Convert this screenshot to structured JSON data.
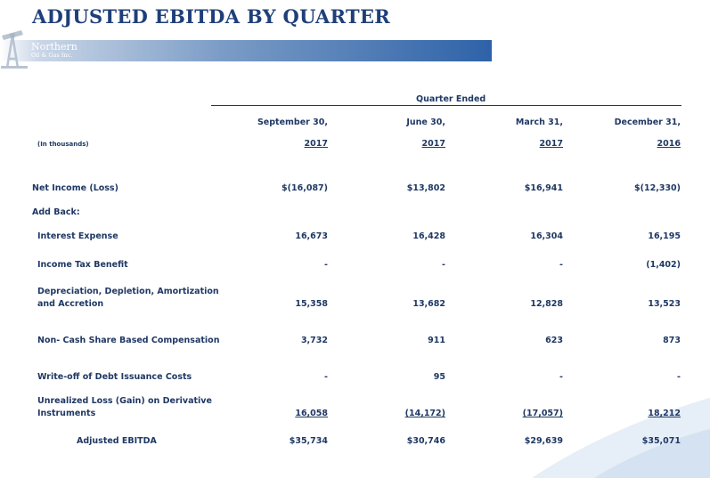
{
  "title": "ADJUSTED EBITDA BY QUARTER",
  "brand": {
    "line1": "Northern",
    "line2": "Oil & Gas Inc."
  },
  "table": {
    "group_header": "Quarter Ended",
    "units_note": "(In thousands)",
    "columns": [
      {
        "line1": "September 30,",
        "line2": "2017"
      },
      {
        "line1": "June 30,",
        "line2": "2017"
      },
      {
        "line1": "March 31,",
        "line2": "2017"
      },
      {
        "line1": "December 31,",
        "line2": "2016"
      }
    ],
    "rows": [
      {
        "label": "Net Income (Loss)",
        "values": [
          "$(16,087)",
          "$13,802",
          "$16,941",
          "$(12,330)"
        ]
      },
      {
        "label": "Add Back:",
        "values": []
      },
      {
        "label": "Interest Expense",
        "values": [
          "16,673",
          "16,428",
          "16,304",
          "16,195"
        ]
      },
      {
        "label": "Income Tax Benefit",
        "values": [
          "-",
          "-",
          "-",
          "(1,402)"
        ]
      },
      {
        "label_line1": "Depreciation, Depletion, Amortization",
        "label_line2": "and Accretion",
        "values": [
          "15,358",
          "13,682",
          "12,828",
          "13,523"
        ]
      },
      {
        "label": "Non- Cash Share Based Compensation",
        "values": [
          "3,732",
          "911",
          "623",
          "873"
        ]
      },
      {
        "label": "Write-off of Debt Issuance Costs",
        "values": [
          "-",
          "95",
          "-",
          "-"
        ]
      },
      {
        "label_line1": "Unrealized Loss (Gain) on Derivative",
        "label_line2": "Instruments",
        "values": [
          "16,058",
          "(14,172)",
          "(17,057)",
          "18,212"
        ]
      },
      {
        "label": "Adjusted EBITDA",
        "values": [
          "$35,734",
          "$30,746",
          "$29,639",
          "$35,071"
        ]
      }
    ]
  }
}
